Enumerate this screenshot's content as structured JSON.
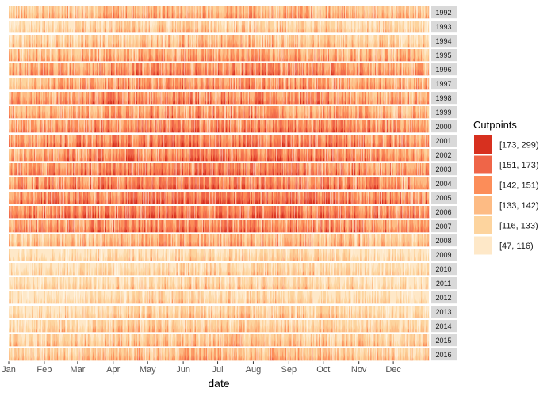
{
  "chart_data": {
    "type": "area",
    "description_of_marks": "horizon-style daily value bands, one strip per year",
    "xlabel": "date",
    "x_ticks": [
      "Jan",
      "Feb",
      "Mar",
      "Apr",
      "May",
      "Jun",
      "Jul",
      "Aug",
      "Sep",
      "Oct",
      "Nov",
      "Dec"
    ],
    "facets": [
      "1992",
      "1993",
      "1994",
      "1995",
      "1996",
      "1997",
      "1998",
      "1999",
      "2000",
      "2001",
      "2002",
      "2003",
      "2004",
      "2005",
      "2006",
      "2007",
      "2008",
      "2009",
      "2010",
      "2011",
      "2012",
      "2013",
      "2014",
      "2015",
      "2016"
    ],
    "facet_mean_level": [
      3.0,
      2.0,
      2.4,
      3.2,
      3.8,
      3.6,
      3.8,
      3.4,
      4.0,
      4.1,
      4.0,
      4.1,
      4.2,
      4.3,
      4.4,
      4.0,
      2.8,
      1.6,
      1.6,
      1.7,
      1.6,
      1.8,
      2.1,
      2.3,
      2.6
    ],
    "legend": {
      "title": "Cutpoints",
      "placement": "right",
      "entries": [
        {
          "label": "[173, 299)",
          "color": "#d7301f"
        },
        {
          "label": "[151, 173)",
          "color": "#ef6548"
        },
        {
          "label": "[142, 151)",
          "color": "#fc8d59"
        },
        {
          "label": "[133, 142)",
          "color": "#fdbb84"
        },
        {
          "label": "[116, 133)",
          "color": "#fdd49e"
        },
        {
          "label": "[47, 116)",
          "color": "#fee8c8"
        }
      ]
    },
    "strip_color": "#d9d9d9",
    "grid": false
  }
}
